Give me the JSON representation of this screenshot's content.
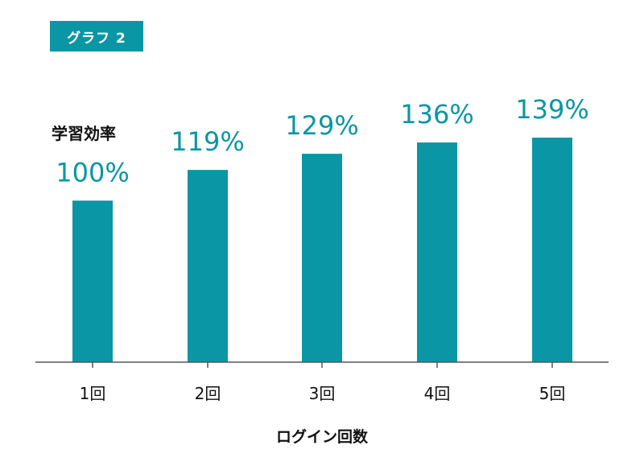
{
  "badge": {
    "label": "グラフ 2"
  },
  "colors": {
    "bar": "#0a96a4",
    "value_text": "#0a96a4",
    "axis": "#555555"
  },
  "chart_data": {
    "type": "bar",
    "title": "",
    "ylabel": "学習効率",
    "xlabel": "ログイン回数",
    "categories": [
      "1回",
      "2回",
      "3回",
      "4回",
      "5回"
    ],
    "values": [
      100,
      119,
      129,
      136,
      139
    ],
    "value_labels": [
      "100%",
      "119%",
      "129%",
      "136%",
      "139%"
    ],
    "ylim": [
      0,
      139
    ],
    "grid": false,
    "legend": "none"
  }
}
